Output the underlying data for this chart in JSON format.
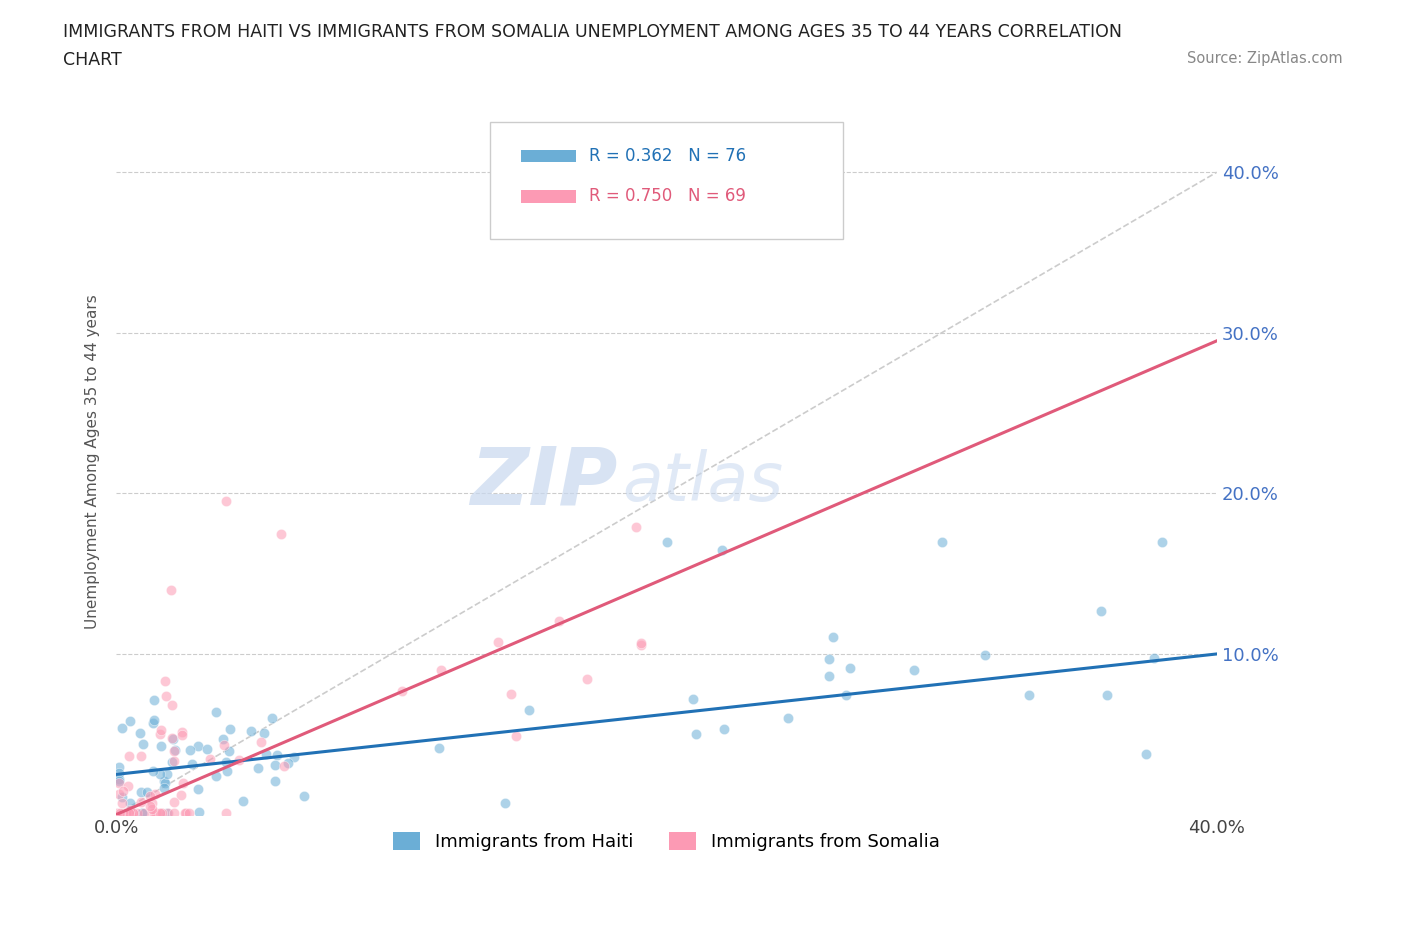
{
  "title_line1": "IMMIGRANTS FROM HAITI VS IMMIGRANTS FROM SOMALIA UNEMPLOYMENT AMONG AGES 35 TO 44 YEARS CORRELATION",
  "title_line2": "CHART",
  "source": "Source: ZipAtlas.com",
  "ylabel": "Unemployment Among Ages 35 to 44 years",
  "xmin": 0.0,
  "xmax": 0.4,
  "ymin": 0.0,
  "ymax": 0.44,
  "haiti_color": "#6baed6",
  "somalia_color": "#fc9ab4",
  "haiti_line_color": "#2171b5",
  "somalia_line_color": "#e05a7a",
  "haiti_R": 0.362,
  "haiti_N": 76,
  "somalia_R": 0.75,
  "somalia_N": 69,
  "legend_label_haiti": "Immigrants from Haiti",
  "legend_label_somalia": "Immigrants from Somalia",
  "haiti_trend_y0": 0.025,
  "haiti_trend_y1": 0.1,
  "somalia_trend_y0": 0.0,
  "somalia_trend_y1": 0.295
}
